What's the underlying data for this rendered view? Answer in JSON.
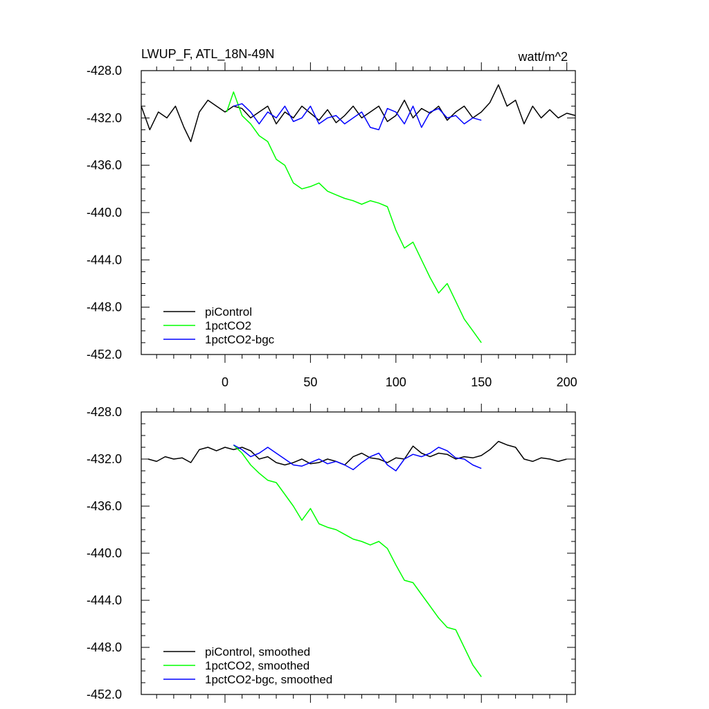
{
  "chart_data": [
    {
      "type": "line",
      "title": "LWUP_F, ATL_18N-49N",
      "units": "watt/m^2",
      "xlabel": "",
      "ylabel": "",
      "xlim": [
        -49,
        205
      ],
      "ylim": [
        -452.0,
        -428.0
      ],
      "x_ticks": [
        0,
        50,
        100,
        150,
        200
      ],
      "x_tick_labels": [
        "0",
        "50",
        "100",
        "150",
        "200"
      ],
      "y_ticks": [
        -428.0,
        -432.0,
        -436.0,
        -440.0,
        -444.0,
        -448.0,
        -452.0
      ],
      "y_tick_labels": [
        "-428.0",
        "-432.0",
        "-436.0",
        "-440.0",
        "-444.0",
        "-448.0",
        "-452.0"
      ],
      "legend_position": "bottom-left",
      "series": [
        {
          "name": "piControl",
          "color": "#000000",
          "x": [
            -49,
            -44,
            -39,
            -34,
            -29,
            -24,
            -20,
            -15,
            -10,
            -5,
            0,
            5,
            10,
            15,
            20,
            25,
            30,
            35,
            40,
            45,
            50,
            55,
            60,
            65,
            70,
            75,
            80,
            85,
            90,
            95,
            100,
            105,
            110,
            115,
            120,
            125,
            130,
            135,
            140,
            145,
            150,
            155,
            160,
            165,
            170,
            175,
            180,
            185,
            190,
            195,
            200,
            205
          ],
          "y": [
            -431.0,
            -433.0,
            -431.5,
            -432.0,
            -431.0,
            -432.8,
            -434.0,
            -431.5,
            -430.5,
            -431.0,
            -431.5,
            -431.0,
            -431.2,
            -432.0,
            -431.5,
            -431.0,
            -432.5,
            -431.5,
            -432.0,
            -431.0,
            -431.6,
            -432.2,
            -431.3,
            -432.4,
            -431.8,
            -431.0,
            -432.0,
            -431.5,
            -431.0,
            -432.3,
            -431.8,
            -430.5,
            -432.0,
            -431.2,
            -431.6,
            -431.0,
            -432.2,
            -431.5,
            -431.0,
            -432.0,
            -431.5,
            -430.7,
            -429.2,
            -431.0,
            -430.5,
            -432.5,
            -431.0,
            -432.0,
            -431.3,
            -432.0,
            -431.6,
            -431.8
          ]
        },
        {
          "name": "1pctCO2",
          "color": "#00ff00",
          "x": [
            1,
            5,
            10,
            15,
            20,
            25,
            30,
            35,
            40,
            45,
            50,
            55,
            60,
            65,
            70,
            75,
            80,
            85,
            90,
            95,
            100,
            105,
            110,
            115,
            120,
            125,
            130,
            135,
            140,
            145,
            150
          ],
          "y": [
            -431.5,
            -429.8,
            -431.8,
            -432.5,
            -433.5,
            -434.0,
            -435.5,
            -436.0,
            -437.5,
            -438.0,
            -437.8,
            -437.5,
            -438.2,
            -438.5,
            -438.8,
            -439.0,
            -439.3,
            -439.0,
            -439.2,
            -439.5,
            -441.5,
            -443.0,
            -442.5,
            -444.0,
            -445.5,
            -446.8,
            -446.0,
            -447.5,
            -449.0,
            -450.0,
            -451.0
          ]
        },
        {
          "name": "1pctCO2-bgc",
          "color": "#0000ff",
          "x": [
            5,
            10,
            15,
            20,
            25,
            30,
            35,
            40,
            45,
            50,
            55,
            60,
            65,
            70,
            75,
            80,
            85,
            90,
            95,
            100,
            105,
            110,
            115,
            120,
            125,
            130,
            135,
            140,
            145,
            150
          ],
          "y": [
            -431.0,
            -430.8,
            -431.5,
            -432.5,
            -431.5,
            -432.0,
            -431.0,
            -432.3,
            -432.0,
            -431.0,
            -432.5,
            -432.0,
            -431.8,
            -432.5,
            -432.0,
            -431.5,
            -432.8,
            -433.0,
            -431.2,
            -431.5,
            -432.5,
            -431.0,
            -432.8,
            -431.5,
            -431.2,
            -432.0,
            -431.8,
            -432.5,
            -432.0,
            -432.2
          ]
        }
      ]
    },
    {
      "type": "line",
      "title": "",
      "xlabel": "",
      "ylabel": "",
      "xlim": [
        -49,
        205
      ],
      "ylim": [
        -452.0,
        -428.0
      ],
      "x_ticks": [
        0,
        50,
        100,
        150,
        200
      ],
      "x_tick_labels": [],
      "y_ticks": [
        -428.0,
        -432.0,
        -436.0,
        -440.0,
        -444.0,
        -448.0,
        -452.0
      ],
      "y_tick_labels": [
        "-428.0",
        "-432.0",
        "-436.0",
        "-440.0",
        "-444.0",
        "-448.0",
        "-452.0"
      ],
      "legend_position": "bottom-left",
      "series": [
        {
          "name": "piControl, smoothed",
          "color": "#000000",
          "x": [
            -45,
            -40,
            -35,
            -30,
            -25,
            -20,
            -15,
            -10,
            -5,
            0,
            5,
            10,
            15,
            20,
            25,
            30,
            35,
            40,
            45,
            50,
            55,
            60,
            65,
            70,
            75,
            80,
            85,
            90,
            95,
            100,
            105,
            110,
            115,
            120,
            125,
            130,
            135,
            140,
            145,
            150,
            155,
            160,
            165,
            170,
            175,
            180,
            185,
            190,
            195,
            200
          ],
          "y": [
            -432.0,
            -432.2,
            -431.8,
            -432.0,
            -431.9,
            -432.3,
            -431.2,
            -431.0,
            -431.3,
            -431.0,
            -431.2,
            -431.0,
            -431.3,
            -432.0,
            -431.8,
            -432.3,
            -432.5,
            -432.3,
            -432.0,
            -432.4,
            -432.3,
            -432.0,
            -432.2,
            -432.5,
            -431.8,
            -431.5,
            -431.9,
            -432.0,
            -432.3,
            -431.9,
            -432.0,
            -430.9,
            -431.5,
            -431.8,
            -431.5,
            -431.6,
            -432.0,
            -431.8,
            -431.9,
            -431.7,
            -431.2,
            -430.5,
            -430.8,
            -431.0,
            -432.0,
            -432.2,
            -431.9,
            -432.0,
            -432.2,
            -432.0
          ]
        },
        {
          "name": "1pctCO2, smoothed",
          "color": "#00ff00",
          "x": [
            5,
            10,
            15,
            20,
            25,
            30,
            35,
            40,
            45,
            50,
            55,
            60,
            65,
            70,
            75,
            80,
            85,
            90,
            95,
            100,
            105,
            110,
            115,
            120,
            125,
            130,
            135,
            140,
            145,
            150
          ],
          "y": [
            -430.8,
            -431.5,
            -432.5,
            -433.2,
            -433.8,
            -434.0,
            -435.0,
            -436.0,
            -437.2,
            -436.2,
            -437.5,
            -437.8,
            -438.0,
            -438.4,
            -438.8,
            -439.0,
            -439.3,
            -439.0,
            -439.6,
            -441.0,
            -442.3,
            -442.5,
            -443.5,
            -444.5,
            -445.5,
            -446.3,
            -446.5,
            -448.0,
            -449.5,
            -450.5
          ]
        },
        {
          "name": "1pctCO2-bgc, smoothed",
          "color": "#0000ff",
          "x": [
            5,
            10,
            15,
            20,
            25,
            30,
            35,
            40,
            45,
            50,
            55,
            60,
            65,
            70,
            75,
            80,
            85,
            90,
            95,
            100,
            105,
            110,
            115,
            120,
            125,
            130,
            135,
            140,
            145,
            150
          ],
          "y": [
            -430.8,
            -431.2,
            -431.8,
            -431.5,
            -431.0,
            -431.5,
            -432.0,
            -432.5,
            -432.6,
            -432.3,
            -432.0,
            -432.4,
            -432.2,
            -432.5,
            -432.9,
            -432.3,
            -431.8,
            -431.5,
            -432.5,
            -433.0,
            -432.0,
            -431.6,
            -431.8,
            -431.5,
            -431.0,
            -431.3,
            -431.9,
            -432.0,
            -432.5,
            -432.8
          ]
        }
      ]
    }
  ]
}
